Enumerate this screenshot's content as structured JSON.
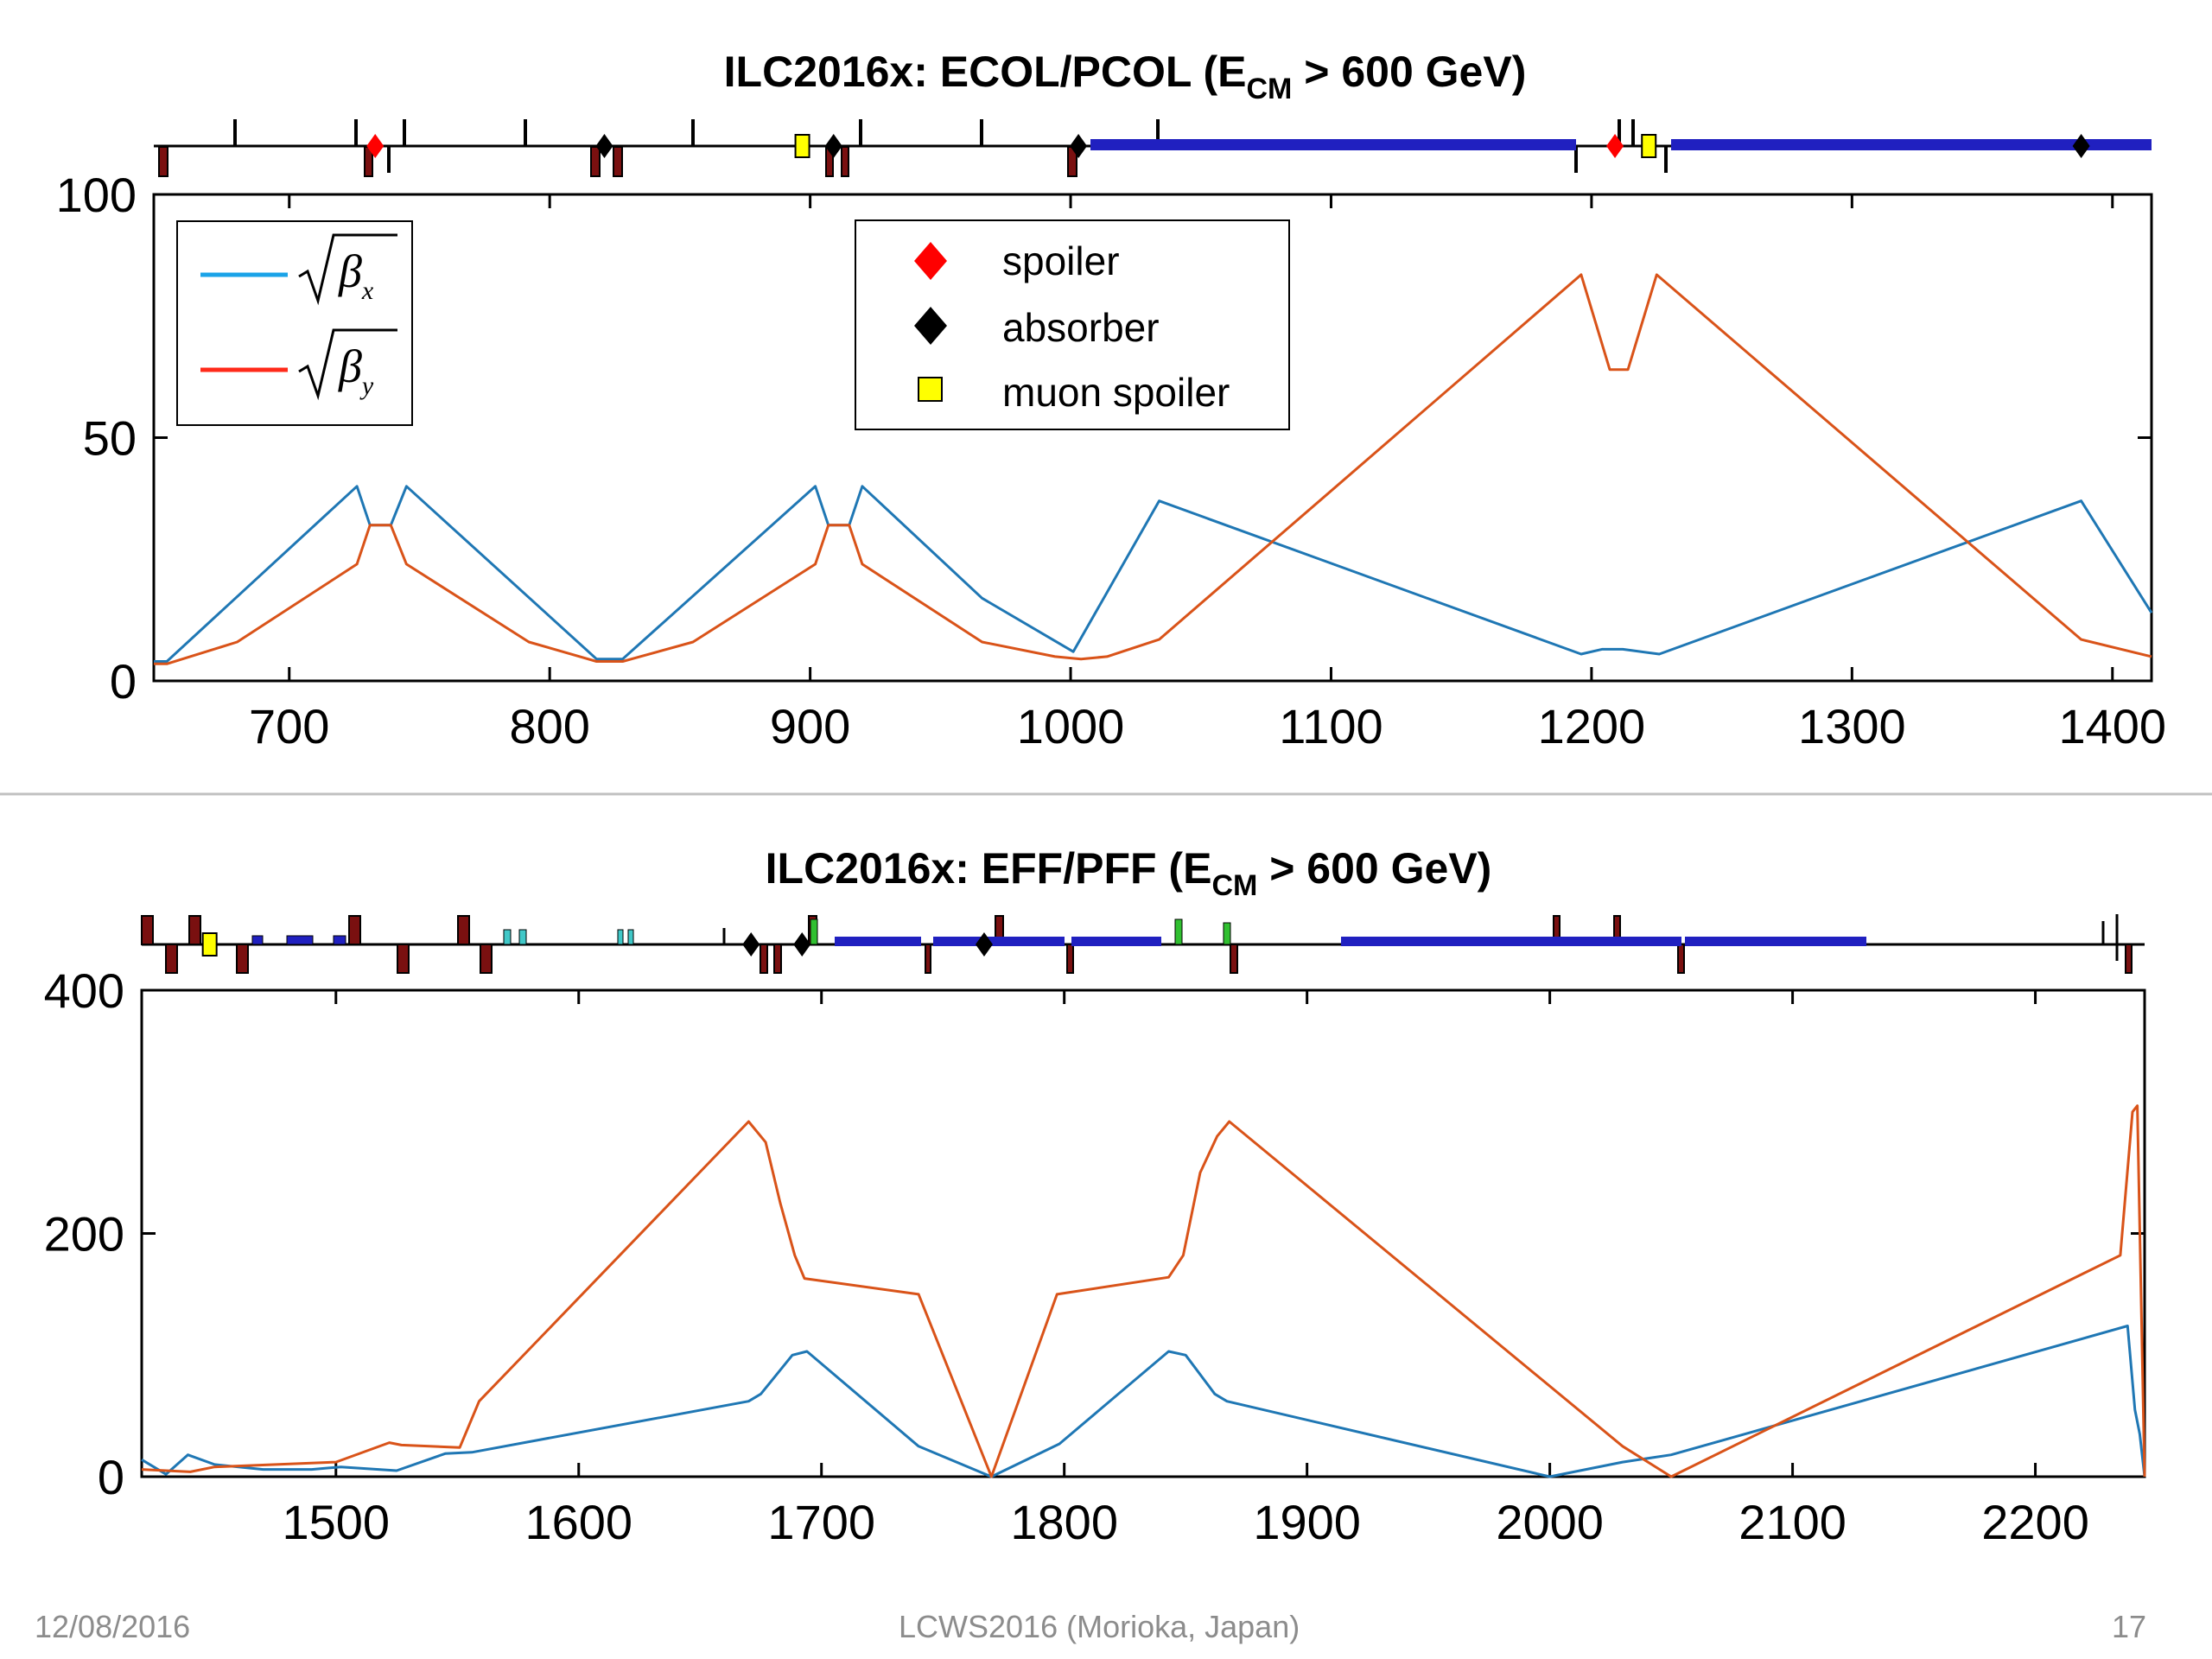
{
  "colors": {
    "beta_x": "#1f77b4",
    "beta_y": "#d95319",
    "legend_beta_x": "#1aa3e8",
    "legend_beta_y": "#ff2a1a",
    "spoiler": "#ff0000",
    "absorber": "#000000",
    "muon_spoiler": "#ffff00",
    "dipole": "#2020c0",
    "quad": "#7a1010",
    "sextupole": "#40c8c8",
    "octupole": "#30c030",
    "footer_text": "#8c8c8c",
    "separator": "#c0c0c0"
  },
  "legend": {
    "beta_x_symbol": "β",
    "beta_x_sub": "x",
    "beta_y_symbol": "β",
    "beta_y_sub": "y",
    "markers": [
      {
        "label": "spoiler",
        "shape": "red-diamond"
      },
      {
        "label": "absorber",
        "shape": "black-diamond"
      },
      {
        "label": "muon spoiler",
        "shape": "yellow-square"
      }
    ]
  },
  "chart_data": [
    {
      "type": "line",
      "title": "ILC2016x: ECOL/PCOL (E",
      "title_sub": "CM",
      "title_tail": " > 600 GeV)",
      "xlim": [
        648,
        1415
      ],
      "ylim": [
        0,
        100
      ],
      "xticks": [
        700,
        800,
        900,
        1000,
        1100,
        1200,
        1300,
        1400
      ],
      "yticks": [
        0,
        50,
        100
      ],
      "grid": false,
      "legend_placement": "top-left (beta legend), top-center (marker legend)",
      "series": [
        {
          "id": "beta_x",
          "points": [
            [
              648,
              4
            ],
            [
              653,
              4
            ],
            [
              726,
              40
            ],
            [
              731,
              32
            ],
            [
              739,
              32
            ],
            [
              745,
              40
            ],
            [
              818,
              4.5
            ],
            [
              828,
              4.5
            ],
            [
              902,
              40
            ],
            [
              907,
              32
            ],
            [
              915,
              32
            ],
            [
              920,
              40
            ],
            [
              966,
              17
            ],
            [
              1001,
              6
            ],
            [
              1034,
              37
            ],
            [
              1196,
              5.5
            ],
            [
              1204,
              6.5
            ],
            [
              1212,
              6.5
            ],
            [
              1226,
              5.5
            ],
            [
              1388,
              37
            ],
            [
              1415,
              14
            ]
          ]
        },
        {
          "id": "beta_y",
          "points": [
            [
              648,
              3.5
            ],
            [
              653,
              3.5
            ],
            [
              680,
              8
            ],
            [
              726,
              24
            ],
            [
              731,
              32
            ],
            [
              739,
              32
            ],
            [
              745,
              24
            ],
            [
              792,
              8
            ],
            [
              818,
              4
            ],
            [
              828,
              4
            ],
            [
              855,
              8
            ],
            [
              902,
              24
            ],
            [
              907,
              32
            ],
            [
              915,
              32
            ],
            [
              920,
              24
            ],
            [
              966,
              8
            ],
            [
              994,
              5
            ],
            [
              1004,
              4.5
            ],
            [
              1014,
              5
            ],
            [
              1034,
              8.5
            ],
            [
              1196,
              83.5
            ],
            [
              1207,
              64
            ],
            [
              1214,
              64
            ],
            [
              1225,
              83.5
            ],
            [
              1388,
              8.5
            ],
            [
              1415,
              5
            ]
          ]
        }
      ],
      "markers": [
        {
          "type": "spoiler",
          "s": 733
        },
        {
          "type": "spoiler",
          "s": 1209
        },
        {
          "type": "absorber",
          "s": 821
        },
        {
          "type": "absorber",
          "s": 909
        },
        {
          "type": "absorber",
          "s": 1003
        },
        {
          "type": "absorber",
          "s": 1388
        },
        {
          "type": "muon_spoiler",
          "s": 897
        },
        {
          "type": "muon_spoiler",
          "s": 1222
        }
      ]
    },
    {
      "type": "line",
      "title": "ILC2016x: EFF/PFF (E",
      "title_sub": "CM",
      "title_tail": " > 600 GeV)",
      "xlim": [
        1420,
        2245
      ],
      "ylim": [
        0,
        400
      ],
      "xticks": [
        1500,
        1600,
        1700,
        1800,
        1900,
        2000,
        2100,
        2200
      ],
      "yticks": [
        0,
        200,
        400
      ],
      "grid": false,
      "series": [
        {
          "id": "beta_x",
          "points": [
            [
              1420,
              14
            ],
            [
              1425,
              8
            ],
            [
              1430,
              2
            ],
            [
              1439,
              18
            ],
            [
              1450,
              10
            ],
            [
              1470,
              6
            ],
            [
              1490,
              6
            ],
            [
              1502,
              8
            ],
            [
              1525,
              5
            ],
            [
              1545,
              19
            ],
            [
              1556,
              20
            ],
            [
              1670,
              62
            ],
            [
              1675,
              68
            ],
            [
              1688,
              100
            ],
            [
              1694,
              103
            ],
            [
              1740,
              25
            ],
            [
              1770,
              0
            ],
            [
              1798,
              27
            ],
            [
              1843,
              103
            ],
            [
              1850,
              100
            ],
            [
              1862,
              68
            ],
            [
              1867,
              62
            ],
            [
              2000,
              0
            ],
            [
              2030,
              12
            ],
            [
              2050,
              18
            ],
            [
              2238,
              124
            ],
            [
              2241,
              55
            ],
            [
              2243,
              35
            ],
            [
              2245,
              0
            ]
          ]
        },
        {
          "id": "beta_y",
          "points": [
            [
              1420,
              6
            ],
            [
              1440,
              4
            ],
            [
              1450,
              8
            ],
            [
              1500,
              12
            ],
            [
              1522,
              28
            ],
            [
              1527,
              26
            ],
            [
              1551,
              24
            ],
            [
              1559,
              62
            ],
            [
              1670,
              292
            ],
            [
              1677,
              275
            ],
            [
              1683,
              225
            ],
            [
              1689,
              182
            ],
            [
              1693,
              163
            ],
            [
              1740,
              150
            ],
            [
              1770,
              0
            ],
            [
              1797,
              150
            ],
            [
              1843,
              164
            ],
            [
              1849,
              182
            ],
            [
              1856,
              250
            ],
            [
              1863,
              280
            ],
            [
              1868,
              292
            ],
            [
              2030,
              25
            ],
            [
              2050,
              0
            ],
            [
              2235,
              182
            ],
            [
              2240,
              300
            ],
            [
              2242,
              305
            ],
            [
              2245,
              0
            ]
          ]
        }
      ],
      "markers": [
        {
          "type": "muon_spoiler",
          "s": 1448
        },
        {
          "type": "absorber",
          "s": 1671
        },
        {
          "type": "absorber",
          "s": 1692
        },
        {
          "type": "absorber",
          "s": 1767
        }
      ]
    }
  ],
  "footer": {
    "date": "12/08/2016",
    "center": "LCWS2016 (Morioka, Japan)",
    "page": "17"
  }
}
